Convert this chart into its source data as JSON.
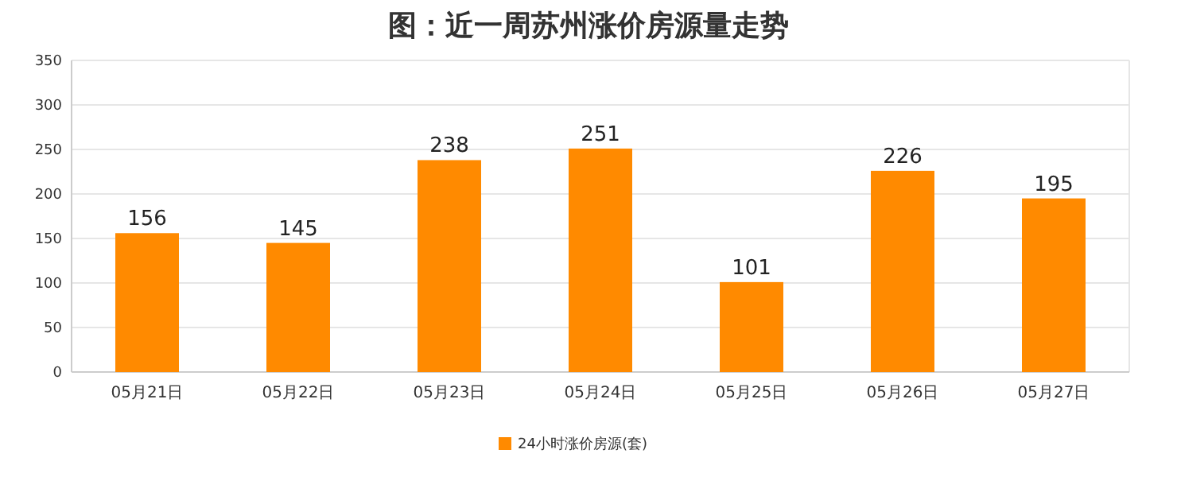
{
  "chart_data": {
    "type": "bar",
    "title": "图：近一周苏州涨价房源量走势",
    "categories": [
      "05月21日",
      "05月22日",
      "05月23日",
      "05月24日",
      "05月25日",
      "05月26日",
      "05月27日"
    ],
    "series": [
      {
        "name": "24小时涨价房源(套)",
        "color": "#ff8a00",
        "values": [
          156,
          145,
          238,
          251,
          101,
          226,
          195
        ]
      }
    ],
    "ylim": [
      0,
      350
    ],
    "yticks": [
      0,
      50,
      100,
      150,
      200,
      250,
      300,
      350
    ],
    "grid": "y",
    "legend": "bottom",
    "data_labels": true
  }
}
